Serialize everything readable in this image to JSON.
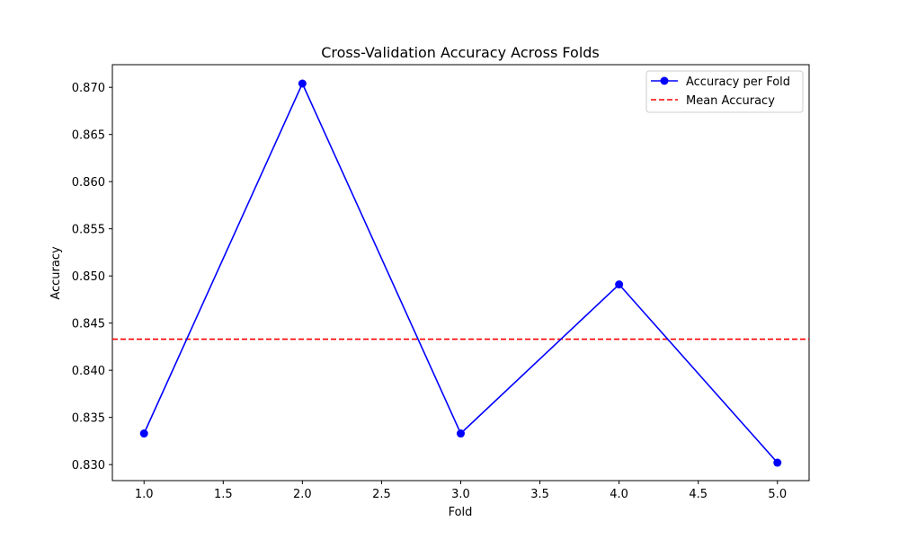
{
  "chart_data": {
    "type": "line",
    "title": "Cross-Validation Accuracy Across Folds",
    "xlabel": "Fold",
    "ylabel": "Accuracy",
    "xlim": [
      0.8,
      5.2
    ],
    "ylim": [
      0.8283,
      0.8724
    ],
    "xticks": [
      1.0,
      1.5,
      2.0,
      2.5,
      3.0,
      3.5,
      4.0,
      4.5,
      5.0
    ],
    "xtick_labels": [
      "1.0",
      "1.5",
      "2.0",
      "2.5",
      "3.0",
      "3.5",
      "4.0",
      "4.5",
      "5.0"
    ],
    "yticks": [
      0.83,
      0.835,
      0.84,
      0.845,
      0.85,
      0.855,
      0.86,
      0.865,
      0.87
    ],
    "ytick_labels": [
      "0.830",
      "0.835",
      "0.840",
      "0.845",
      "0.850",
      "0.855",
      "0.860",
      "0.865",
      "0.870"
    ],
    "grid": false,
    "legend_position": "top-right",
    "series": [
      {
        "name": "Accuracy per Fold",
        "color": "#0000ff",
        "marker": "circle",
        "x": [
          1,
          2,
          3,
          4,
          5
        ],
        "y": [
          0.8333,
          0.8704,
          0.8333,
          0.8491,
          0.8302
        ]
      }
    ],
    "reference_lines": [
      {
        "name": "Mean Accuracy",
        "color": "#ff0000",
        "style": "dashed",
        "y": 0.8433
      }
    ]
  }
}
